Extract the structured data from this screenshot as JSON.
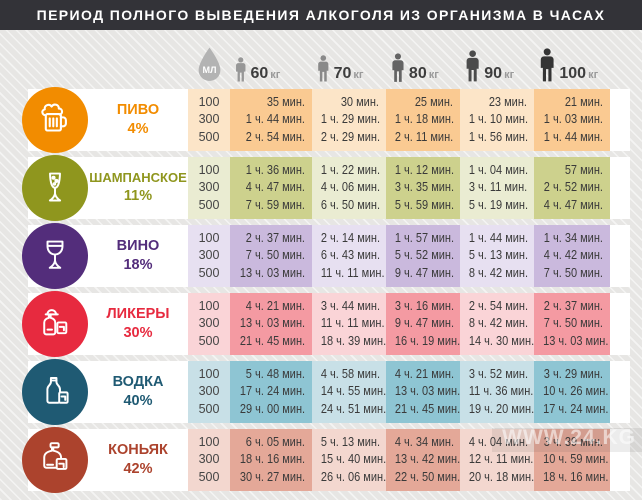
{
  "title": "ПЕРИОД ПОЛНОГО ВЫВЕДЕНИЯ АЛКОГОЛЯ ИЗ ОРГАНИЗМА В ЧАСАХ",
  "watermark": "WWW.24.KG",
  "header": {
    "ml_label": "МЛ",
    "ml_icon_color": "#b3b3b3",
    "weights": [
      {
        "value": "60",
        "unit": "кг",
        "icon_color": "#979797"
      },
      {
        "value": "70",
        "unit": "кг",
        "icon_color": "#898989"
      },
      {
        "value": "80",
        "unit": "кг",
        "icon_color": "#646464"
      },
      {
        "value": "90",
        "unit": "кг",
        "icon_color": "#4b4b4b"
      },
      {
        "value": "100",
        "unit": "кг",
        "icon_color": "#343434"
      }
    ]
  },
  "drink_styles": [
    {
      "key": "beer",
      "icon": "beer-mug-icon",
      "accent": "#F28C00",
      "light": "#FCE5C8",
      "dark": "#FACA92"
    },
    {
      "key": "champagne",
      "icon": "champagne-glass-icon",
      "accent": "#8F961E",
      "light": "#EAECD2",
      "dark": "#CDD18D"
    },
    {
      "key": "wine",
      "icon": "wine-glass-icon",
      "accent": "#532D7B",
      "light": "#E7E0F1",
      "dark": "#CAB9DD"
    },
    {
      "key": "liqueur",
      "icon": "liqueur-bottle-icon",
      "accent": "#E72A3F",
      "light": "#FAD4D7",
      "dark": "#F49AA2"
    },
    {
      "key": "vodka",
      "icon": "vodka-bottle-icon",
      "accent": "#1F5A73",
      "light": "#C8E0E7",
      "dark": "#8EC5D3"
    },
    {
      "key": "cognac",
      "icon": "cognac-decanter-icon",
      "accent": "#AC432D",
      "light": "#F3D7CF",
      "dark": "#E4A898"
    }
  ],
  "chart_data": {
    "type": "table",
    "title": "ПЕРИОД ПОЛНОГО ВЫВЕДЕНИЯ АЛКОГОЛЯ ИЗ ОРГАНИЗМА В ЧАСАХ",
    "volume_ml": [
      100,
      300,
      500
    ],
    "weights_kg": [
      60,
      70,
      80,
      90,
      100
    ],
    "drinks": [
      {
        "name": "ПИВО",
        "strength": "4%",
        "times": {
          "60": [
            "35 мин.",
            "1 ч. 44 мин.",
            "2 ч. 54 мин."
          ],
          "70": [
            "30 мин.",
            "1 ч. 29 мин.",
            "2 ч. 29 мин."
          ],
          "80": [
            "25 мин.",
            "1 ч. 18 мин.",
            "2 ч. 11 мин."
          ],
          "90": [
            "23 мин.",
            "1 ч. 10 мин.",
            "1 ч. 56 мин."
          ],
          "100": [
            "21 мин.",
            "1 ч. 03 мин.",
            "1 ч. 44 мин."
          ]
        }
      },
      {
        "name": "ШАМПАНСКОЕ",
        "strength": "11%",
        "times": {
          "60": [
            "1 ч. 36 мин.",
            "4 ч. 47 мин.",
            "7 ч. 59 мин."
          ],
          "70": [
            "1 ч. 22 мин.",
            "4 ч. 06 мин.",
            "6 ч. 50 мин."
          ],
          "80": [
            "1 ч. 12 мин.",
            "3 ч. 35 мин.",
            "5 ч. 59 мин."
          ],
          "90": [
            "1 ч. 04 мин.",
            "3 ч. 11 мин.",
            "5 ч. 19 мин."
          ],
          "100": [
            "57 мин.",
            "2 ч. 52 мин.",
            "4 ч. 47 мин."
          ]
        }
      },
      {
        "name": "ВИНО",
        "strength": "18%",
        "times": {
          "60": [
            "2 ч. 37 мин.",
            "7 ч. 50 мин.",
            "13 ч. 03 мин."
          ],
          "70": [
            "2 ч. 14 мин.",
            "6 ч. 43 мин.",
            "11 ч. 11 мин."
          ],
          "80": [
            "1 ч. 57 мин.",
            "5 ч. 52 мин.",
            "9 ч. 47 мин."
          ],
          "90": [
            "1 ч. 44 мин.",
            "5 ч. 13 мин.",
            "8 ч. 42 мин."
          ],
          "100": [
            "1 ч. 34 мин.",
            "4 ч. 42 мин.",
            "7 ч. 50 мин."
          ]
        }
      },
      {
        "name": "ЛИКЕРЫ",
        "strength": "30%",
        "times": {
          "60": [
            "4 ч. 21 мин.",
            "13 ч. 03 мин.",
            "21 ч. 45 мин."
          ],
          "70": [
            "3 ч. 44 мин.",
            "11 ч. 11 мин.",
            "18 ч. 39 мин."
          ],
          "80": [
            "3 ч. 16 мин.",
            "9 ч. 47 мин.",
            "16 ч. 19 мин."
          ],
          "90": [
            "2 ч. 54 мин.",
            "8 ч. 42 мин.",
            "14 ч. 30 мин."
          ],
          "100": [
            "2 ч. 37 мин.",
            "7 ч. 50 мин.",
            "13 ч. 03 мин."
          ]
        }
      },
      {
        "name": "ВОДКА",
        "strength": "40%",
        "times": {
          "60": [
            "5 ч. 48 мин.",
            "17 ч. 24 мин.",
            "29 ч. 00 мин."
          ],
          "70": [
            "4 ч. 58 мин.",
            "14 ч. 55 мин.",
            "24 ч. 51 мин."
          ],
          "80": [
            "4 ч. 21 мин.",
            "13 ч. 03 мин.",
            "21 ч. 45 мин."
          ],
          "90": [
            "3 ч. 52 мин.",
            "11 ч. 36 мин.",
            "19 ч. 20 мин."
          ],
          "100": [
            "3 ч. 29 мин.",
            "10 ч. 26 мин.",
            "17 ч. 24 мин."
          ]
        }
      },
      {
        "name": "КОНЬЯК",
        "strength": "42%",
        "times": {
          "60": [
            "6 ч. 05 мин.",
            "18 ч. 16 мин.",
            "30 ч. 27 мин."
          ],
          "70": [
            "5 ч. 13 мин.",
            "15 ч. 40 мин.",
            "26 ч. 06 мин."
          ],
          "80": [
            "4 ч. 34 мин.",
            "13 ч. 42 мин.",
            "22 ч. 50 мин."
          ],
          "90": [
            "4 ч. 04 мин.",
            "12 ч. 11 мин.",
            "20 ч. 18 мин."
          ],
          "100": [
            "3 ч. 39 мин.",
            "10 ч. 59 мин.",
            "18 ч. 16 мин."
          ]
        }
      }
    ]
  }
}
